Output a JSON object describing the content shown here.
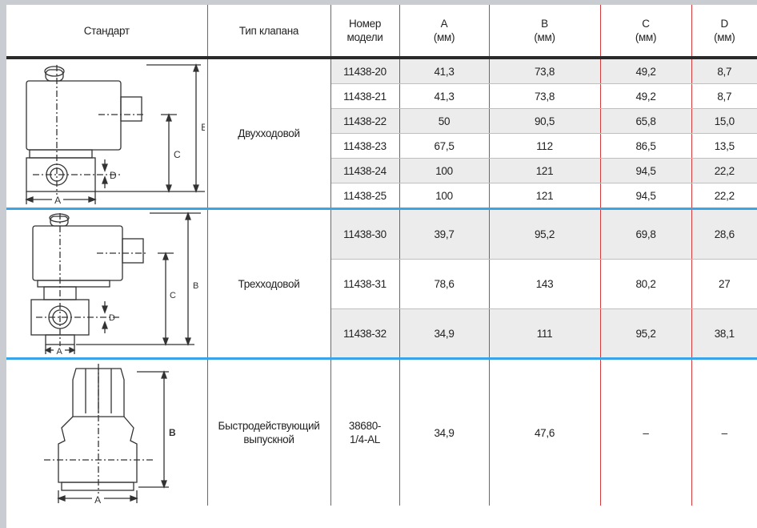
{
  "headers": {
    "standard": "Стандарт",
    "valve_type": "Тип клапана",
    "model_l1": "Номер",
    "model_l2": "модели",
    "a_l1": "A",
    "b_l1": "B",
    "c_l1": "C",
    "d_l1": "D",
    "unit": "(мм)"
  },
  "groups": [
    {
      "type": "Двухходовой",
      "diagram_labels": {
        "a": "A",
        "b": "B",
        "c": "C",
        "d": "D"
      },
      "rows": [
        {
          "model": "11438-20",
          "a": "41,3",
          "b": "73,8",
          "c": "49,2",
          "d": "8,7"
        },
        {
          "model": "11438-21",
          "a": "41,3",
          "b": "73,8",
          "c": "49,2",
          "d": "8,7"
        },
        {
          "model": "11438-22",
          "a": "50",
          "b": "90,5",
          "c": "65,8",
          "d": "15,0"
        },
        {
          "model": "11438-23",
          "a": "67,5",
          "b": "112",
          "c": "86,5",
          "d": "13,5"
        },
        {
          "model": "11438-24",
          "a": "100",
          "b": "121",
          "c": "94,5",
          "d": "22,2"
        },
        {
          "model": "11438-25",
          "a": "100",
          "b": "121",
          "c": "94,5",
          "d": "22,2"
        }
      ]
    },
    {
      "type": "Трехходовой",
      "diagram_labels": {
        "a": "A",
        "b": "B",
        "c": "C",
        "d": "D"
      },
      "rows": [
        {
          "model": "11438-30",
          "a": "39,7",
          "b": "95,2",
          "c": "69,8",
          "d": "28,6"
        },
        {
          "model": "11438-31",
          "a": "78,6",
          "b": "143",
          "c": "80,2",
          "d": "27"
        },
        {
          "model": "11438-32",
          "a": "34,9",
          "b": "111",
          "c": "95,2",
          "d": "38,1"
        }
      ]
    },
    {
      "type_l1": "Быстродействующий",
      "type_l2": "выпускной",
      "diagram_labels": {
        "a": "A",
        "b": "B"
      },
      "rows": [
        {
          "model_l1": "38680-",
          "model_l2": "1/4-AL",
          "a": "34,9",
          "b": "47,6",
          "c": "–",
          "d": "–"
        }
      ]
    }
  ],
  "colors": {
    "red_rule": "#d23c3c",
    "blue_rule": "#3aa5e6",
    "shade": "#ececec"
  }
}
